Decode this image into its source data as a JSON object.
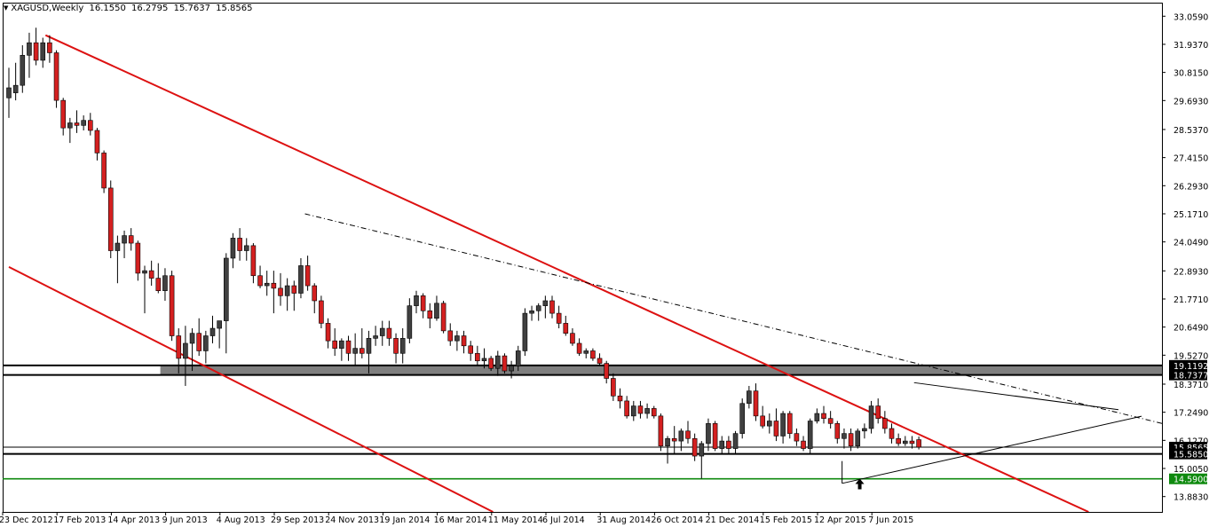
{
  "header": {
    "collapse_glyph": "▼",
    "symbol": "XAGUSD,Weekly",
    "open": "16.1550",
    "high": "16.2795",
    "low": "15.7637",
    "close": "15.8565"
  },
  "colors": {
    "bull": "#404040",
    "bear": "#d42020",
    "wick": "#000000",
    "channel": "#dd1111",
    "support_green": "#0f8a0f",
    "zone": "#7f7f7f",
    "label_bg": "#000000",
    "green_label_bg": "#0f8a0f",
    "tick_text": "#000000"
  },
  "chart_data": {
    "type": "candlestick",
    "symbol": "XAGUSD",
    "timeframe": "Weekly",
    "ylim": [
      13.27,
      33.6
    ],
    "y_ticks": [
      "33.0590",
      "31.9370",
      "30.8150",
      "29.6930",
      "28.5370",
      "27.4150",
      "26.2930",
      "25.1710",
      "24.0490",
      "22.8930",
      "21.7710",
      "20.6490",
      "19.5270",
      "18.3710",
      "17.2490",
      "16.1270",
      "15.0050",
      "13.8830"
    ],
    "x_ticks": [
      {
        "label": "23 Dec 2012",
        "bar": 0
      },
      {
        "label": "17 Feb 2013",
        "bar": 8
      },
      {
        "label": "14 Apr 2013",
        "bar": 16
      },
      {
        "label": "9 Jun 2013",
        "bar": 24
      },
      {
        "label": "4 Aug 2013",
        "bar": 32
      },
      {
        "label": "29 Sep 2013",
        "bar": 40
      },
      {
        "label": "24 Nov 2013",
        "bar": 48
      },
      {
        "label": "19 Jan 2014",
        "bar": 56
      },
      {
        "label": "16 Mar 2014",
        "bar": 64
      },
      {
        "label": "11 May 2014",
        "bar": 72
      },
      {
        "label": "6 Jul 2014",
        "bar": 80
      },
      {
        "label": "31 Aug 2014",
        "bar": 88
      },
      {
        "label": "26 Oct 2014",
        "bar": 96
      },
      {
        "label": "21 Dec 2014",
        "bar": 104
      },
      {
        "label": "15 Feb 2015",
        "bar": 112
      },
      {
        "label": "12 Apr 2015",
        "bar": 120
      },
      {
        "label": "7 Jun 2015",
        "bar": 128
      }
    ],
    "candles": [
      {
        "o": 29.8,
        "h": 31.0,
        "l": 29.0,
        "c": 30.2
      },
      {
        "o": 30.0,
        "h": 31.2,
        "l": 29.7,
        "c": 30.3
      },
      {
        "o": 30.3,
        "h": 31.9,
        "l": 30.0,
        "c": 31.5
      },
      {
        "o": 31.5,
        "h": 32.4,
        "l": 30.6,
        "c": 32.0
      },
      {
        "o": 32.0,
        "h": 32.6,
        "l": 31.1,
        "c": 31.3
      },
      {
        "o": 31.3,
        "h": 32.2,
        "l": 31.0,
        "c": 32.0
      },
      {
        "o": 32.0,
        "h": 32.3,
        "l": 31.2,
        "c": 31.6
      },
      {
        "o": 31.6,
        "h": 31.7,
        "l": 29.4,
        "c": 29.7
      },
      {
        "o": 29.7,
        "h": 29.8,
        "l": 28.3,
        "c": 28.6
      },
      {
        "o": 28.6,
        "h": 29.0,
        "l": 28.0,
        "c": 28.8
      },
      {
        "o": 28.8,
        "h": 29.3,
        "l": 28.4,
        "c": 28.7
      },
      {
        "o": 28.7,
        "h": 29.1,
        "l": 28.5,
        "c": 28.9
      },
      {
        "o": 28.9,
        "h": 29.2,
        "l": 28.3,
        "c": 28.5
      },
      {
        "o": 28.5,
        "h": 28.6,
        "l": 27.3,
        "c": 27.6
      },
      {
        "o": 27.6,
        "h": 27.7,
        "l": 26.0,
        "c": 26.2
      },
      {
        "o": 26.2,
        "h": 26.5,
        "l": 23.4,
        "c": 23.7
      },
      {
        "o": 23.7,
        "h": 24.3,
        "l": 22.4,
        "c": 24.0
      },
      {
        "o": 24.0,
        "h": 24.5,
        "l": 23.4,
        "c": 24.3
      },
      {
        "o": 24.3,
        "h": 24.6,
        "l": 23.7,
        "c": 24.0
      },
      {
        "o": 24.0,
        "h": 24.1,
        "l": 22.5,
        "c": 22.8
      },
      {
        "o": 22.8,
        "h": 23.1,
        "l": 21.2,
        "c": 22.9
      },
      {
        "o": 22.9,
        "h": 23.3,
        "l": 22.3,
        "c": 22.6
      },
      {
        "o": 22.6,
        "h": 23.2,
        "l": 22.0,
        "c": 22.1
      },
      {
        "o": 22.1,
        "h": 23.0,
        "l": 21.7,
        "c": 22.7
      },
      {
        "o": 22.7,
        "h": 22.9,
        "l": 20.1,
        "c": 20.3
      },
      {
        "o": 20.3,
        "h": 20.6,
        "l": 18.8,
        "c": 19.4
      },
      {
        "o": 19.4,
        "h": 20.7,
        "l": 18.3,
        "c": 20.0
      },
      {
        "o": 20.0,
        "h": 20.6,
        "l": 18.9,
        "c": 20.4
      },
      {
        "o": 20.4,
        "h": 21.0,
        "l": 19.5,
        "c": 19.7
      },
      {
        "o": 19.7,
        "h": 20.5,
        "l": 19.2,
        "c": 20.3
      },
      {
        "o": 20.3,
        "h": 21.1,
        "l": 20.0,
        "c": 20.6
      },
      {
        "o": 20.6,
        "h": 20.8,
        "l": 19.8,
        "c": 20.9
      },
      {
        "o": 20.9,
        "h": 23.6,
        "l": 19.6,
        "c": 23.4
      },
      {
        "o": 23.4,
        "h": 24.4,
        "l": 23.0,
        "c": 24.2
      },
      {
        "o": 24.2,
        "h": 24.6,
        "l": 23.3,
        "c": 23.7
      },
      {
        "o": 23.7,
        "h": 24.2,
        "l": 23.3,
        "c": 23.9
      },
      {
        "o": 23.9,
        "h": 24.0,
        "l": 22.4,
        "c": 22.7
      },
      {
        "o": 22.7,
        "h": 23.1,
        "l": 22.2,
        "c": 22.3
      },
      {
        "o": 22.3,
        "h": 22.9,
        "l": 21.9,
        "c": 22.4
      },
      {
        "o": 22.4,
        "h": 22.9,
        "l": 21.2,
        "c": 22.2
      },
      {
        "o": 22.2,
        "h": 22.8,
        "l": 21.5,
        "c": 21.9
      },
      {
        "o": 21.9,
        "h": 22.6,
        "l": 21.3,
        "c": 22.3
      },
      {
        "o": 22.3,
        "h": 22.5,
        "l": 21.3,
        "c": 22.0
      },
      {
        "o": 22.0,
        "h": 23.4,
        "l": 21.8,
        "c": 23.1
      },
      {
        "o": 23.1,
        "h": 23.5,
        "l": 22.1,
        "c": 22.3
      },
      {
        "o": 22.3,
        "h": 22.4,
        "l": 21.2,
        "c": 21.7
      },
      {
        "o": 21.7,
        "h": 21.9,
        "l": 20.6,
        "c": 20.8
      },
      {
        "o": 20.8,
        "h": 21.0,
        "l": 19.8,
        "c": 20.1
      },
      {
        "o": 20.1,
        "h": 20.6,
        "l": 19.5,
        "c": 19.8
      },
      {
        "o": 19.8,
        "h": 20.2,
        "l": 19.3,
        "c": 20.1
      },
      {
        "o": 20.1,
        "h": 20.3,
        "l": 19.3,
        "c": 19.6
      },
      {
        "o": 19.6,
        "h": 20.4,
        "l": 19.1,
        "c": 19.8
      },
      {
        "o": 19.8,
        "h": 20.6,
        "l": 19.4,
        "c": 19.6
      },
      {
        "o": 19.6,
        "h": 20.5,
        "l": 18.8,
        "c": 20.2
      },
      {
        "o": 20.2,
        "h": 20.7,
        "l": 19.9,
        "c": 20.3
      },
      {
        "o": 20.3,
        "h": 20.9,
        "l": 19.9,
        "c": 20.6
      },
      {
        "o": 20.6,
        "h": 20.9,
        "l": 19.9,
        "c": 20.2
      },
      {
        "o": 20.2,
        "h": 20.4,
        "l": 19.2,
        "c": 19.6
      },
      {
        "o": 19.6,
        "h": 20.6,
        "l": 19.2,
        "c": 20.2
      },
      {
        "o": 20.2,
        "h": 21.8,
        "l": 20.0,
        "c": 21.5
      },
      {
        "o": 21.5,
        "h": 22.1,
        "l": 21.2,
        "c": 21.9
      },
      {
        "o": 21.9,
        "h": 22.0,
        "l": 21.0,
        "c": 21.3
      },
      {
        "o": 21.3,
        "h": 21.6,
        "l": 20.6,
        "c": 21.0
      },
      {
        "o": 21.0,
        "h": 21.9,
        "l": 20.9,
        "c": 21.6
      },
      {
        "o": 21.6,
        "h": 21.7,
        "l": 20.4,
        "c": 20.5
      },
      {
        "o": 20.5,
        "h": 20.8,
        "l": 19.9,
        "c": 20.1
      },
      {
        "o": 20.1,
        "h": 20.5,
        "l": 19.7,
        "c": 20.3
      },
      {
        "o": 20.3,
        "h": 20.5,
        "l": 19.6,
        "c": 19.9
      },
      {
        "o": 19.9,
        "h": 20.1,
        "l": 19.3,
        "c": 19.6
      },
      {
        "o": 19.6,
        "h": 19.9,
        "l": 19.1,
        "c": 19.3
      },
      {
        "o": 19.3,
        "h": 19.8,
        "l": 19.0,
        "c": 19.4
      },
      {
        "o": 19.4,
        "h": 19.5,
        "l": 18.9,
        "c": 19.0
      },
      {
        "o": 19.0,
        "h": 19.7,
        "l": 18.7,
        "c": 19.5
      },
      {
        "o": 19.5,
        "h": 19.6,
        "l": 18.8,
        "c": 18.9
      },
      {
        "o": 18.9,
        "h": 19.3,
        "l": 18.6,
        "c": 19.1
      },
      {
        "o": 19.1,
        "h": 19.9,
        "l": 18.9,
        "c": 19.7
      },
      {
        "o": 19.7,
        "h": 21.4,
        "l": 19.5,
        "c": 21.2
      },
      {
        "o": 21.2,
        "h": 21.5,
        "l": 20.9,
        "c": 21.3
      },
      {
        "o": 21.3,
        "h": 21.6,
        "l": 20.9,
        "c": 21.5
      },
      {
        "o": 21.5,
        "h": 21.9,
        "l": 21.0,
        "c": 21.7
      },
      {
        "o": 21.7,
        "h": 21.9,
        "l": 21.0,
        "c": 21.2
      },
      {
        "o": 21.2,
        "h": 21.5,
        "l": 20.6,
        "c": 20.8
      },
      {
        "o": 20.8,
        "h": 21.1,
        "l": 20.3,
        "c": 20.4
      },
      {
        "o": 20.4,
        "h": 20.6,
        "l": 19.9,
        "c": 20.0
      },
      {
        "o": 20.0,
        "h": 20.2,
        "l": 19.5,
        "c": 19.6
      },
      {
        "o": 19.6,
        "h": 19.8,
        "l": 19.4,
        "c": 19.7
      },
      {
        "o": 19.7,
        "h": 19.8,
        "l": 19.3,
        "c": 19.4
      },
      {
        "o": 19.4,
        "h": 19.6,
        "l": 19.1,
        "c": 19.2
      },
      {
        "o": 19.2,
        "h": 19.3,
        "l": 18.4,
        "c": 18.6
      },
      {
        "o": 18.6,
        "h": 18.8,
        "l": 17.7,
        "c": 17.9
      },
      {
        "o": 17.9,
        "h": 18.2,
        "l": 17.4,
        "c": 17.7
      },
      {
        "o": 17.7,
        "h": 17.9,
        "l": 17.0,
        "c": 17.1
      },
      {
        "o": 17.1,
        "h": 17.7,
        "l": 16.9,
        "c": 17.5
      },
      {
        "o": 17.5,
        "h": 17.7,
        "l": 17.0,
        "c": 17.2
      },
      {
        "o": 17.2,
        "h": 17.6,
        "l": 17.0,
        "c": 17.4
      },
      {
        "o": 17.4,
        "h": 17.5,
        "l": 17.0,
        "c": 17.1
      },
      {
        "o": 17.1,
        "h": 17.2,
        "l": 15.7,
        "c": 15.9
      },
      {
        "o": 15.9,
        "h": 16.3,
        "l": 15.2,
        "c": 16.2
      },
      {
        "o": 16.2,
        "h": 16.7,
        "l": 15.6,
        "c": 16.1
      },
      {
        "o": 16.1,
        "h": 16.6,
        "l": 15.7,
        "c": 16.5
      },
      {
        "o": 16.5,
        "h": 16.9,
        "l": 16.0,
        "c": 16.2
      },
      {
        "o": 16.2,
        "h": 16.4,
        "l": 15.3,
        "c": 15.5
      },
      {
        "o": 15.5,
        "h": 16.1,
        "l": 14.6,
        "c": 16.0
      },
      {
        "o": 16.0,
        "h": 17.0,
        "l": 15.7,
        "c": 16.8
      },
      {
        "o": 16.8,
        "h": 16.9,
        "l": 15.7,
        "c": 15.8
      },
      {
        "o": 15.8,
        "h": 16.3,
        "l": 15.6,
        "c": 16.1
      },
      {
        "o": 16.1,
        "h": 16.3,
        "l": 15.6,
        "c": 15.8
      },
      {
        "o": 15.8,
        "h": 16.5,
        "l": 15.6,
        "c": 16.4
      },
      {
        "o": 16.4,
        "h": 17.8,
        "l": 16.2,
        "c": 17.6
      },
      {
        "o": 17.6,
        "h": 18.3,
        "l": 17.4,
        "c": 18.1
      },
      {
        "o": 18.1,
        "h": 18.4,
        "l": 16.9,
        "c": 17.1
      },
      {
        "o": 17.1,
        "h": 17.5,
        "l": 16.6,
        "c": 16.7
      },
      {
        "o": 16.7,
        "h": 17.2,
        "l": 16.4,
        "c": 16.9
      },
      {
        "o": 16.9,
        "h": 17.4,
        "l": 16.1,
        "c": 16.3
      },
      {
        "o": 16.3,
        "h": 17.3,
        "l": 16.0,
        "c": 17.2
      },
      {
        "o": 17.2,
        "h": 17.3,
        "l": 16.2,
        "c": 16.4
      },
      {
        "o": 16.4,
        "h": 16.6,
        "l": 15.9,
        "c": 16.1
      },
      {
        "o": 16.1,
        "h": 16.3,
        "l": 15.7,
        "c": 15.8
      },
      {
        "o": 15.8,
        "h": 17.0,
        "l": 15.6,
        "c": 16.9
      },
      {
        "o": 16.9,
        "h": 17.4,
        "l": 16.8,
        "c": 17.2
      },
      {
        "o": 17.2,
        "h": 17.5,
        "l": 16.8,
        "c": 17.0
      },
      {
        "o": 17.0,
        "h": 17.3,
        "l": 16.6,
        "c": 16.8
      },
      {
        "o": 16.8,
        "h": 16.9,
        "l": 16.0,
        "c": 16.2
      },
      {
        "o": 16.2,
        "h": 16.6,
        "l": 15.8,
        "c": 16.4
      },
      {
        "o": 16.4,
        "h": 16.6,
        "l": 15.7,
        "c": 15.9
      },
      {
        "o": 15.9,
        "h": 16.6,
        "l": 15.8,
        "c": 16.5
      },
      {
        "o": 16.5,
        "h": 16.8,
        "l": 16.2,
        "c": 16.6
      },
      {
        "o": 16.6,
        "h": 17.7,
        "l": 16.4,
        "c": 17.5
      },
      {
        "o": 17.5,
        "h": 17.8,
        "l": 16.8,
        "c": 17.0
      },
      {
        "o": 17.0,
        "h": 17.3,
        "l": 16.4,
        "c": 16.6
      },
      {
        "o": 16.6,
        "h": 16.8,
        "l": 16.0,
        "c": 16.2
      },
      {
        "o": 16.2,
        "h": 16.4,
        "l": 15.9,
        "c": 16.0
      },
      {
        "o": 16.0,
        "h": 16.3,
        "l": 15.9,
        "c": 16.1
      },
      {
        "o": 16.1,
        "h": 16.3,
        "l": 15.8,
        "c": 16.0
      },
      {
        "o": 16.155,
        "h": 16.2795,
        "l": 15.7637,
        "c": 15.8565
      }
    ],
    "price_labels": [
      {
        "text": "19.1192",
        "value": 19.1192,
        "kind": "black"
      },
      {
        "text": "18.7377",
        "value": 18.7377,
        "kind": "black"
      },
      {
        "text": "15.8565",
        "value": 15.8565,
        "kind": "black"
      },
      {
        "text": "15.5850",
        "value": 15.585,
        "kind": "black"
      },
      {
        "text": "14.5900",
        "value": 14.59,
        "kind": "green"
      }
    ],
    "horizontal_lines": [
      {
        "value": 19.1192,
        "color": "black",
        "style": "thick"
      },
      {
        "value": 18.7377,
        "color": "black",
        "style": "thick"
      },
      {
        "value": 15.8565,
        "color": "black",
        "style": "thin"
      },
      {
        "value": 15.585,
        "color": "black",
        "style": "thick"
      },
      {
        "value": 14.59,
        "color": "green",
        "style": "medium"
      }
    ],
    "zone": {
      "from_bar": 22.3,
      "to_bar": 176.3,
      "top": 19.1192,
      "bottom": 18.7377
    },
    "channel_lines": [
      {
        "bar1": 5.4,
        "p1": 32.3,
        "bar2": 159,
        "p2": 13.27
      },
      {
        "bar1": 0,
        "p1": 23.05,
        "bar2": 71.3,
        "p2": 13.27
      }
    ],
    "trend_lines": [
      {
        "bar1": 43.6,
        "p1": 25.17,
        "bar2": 197.3,
        "p2": 14.98,
        "style": "dashdot"
      },
      {
        "bar1": 133.3,
        "p1": 18.43,
        "bar2": 163.4,
        "p2": 17.35,
        "style": "solid"
      },
      {
        "bar1": 122.7,
        "p1": 14.41,
        "bar2": 166.8,
        "p2": 17.09,
        "style": "solid"
      },
      {
        "bar1": 122.7,
        "p1": 14.41,
        "bar2": 122.7,
        "p2": 15.3,
        "style": "solid"
      }
    ],
    "arrow": {
      "bar": 125.3,
      "value": 14.35,
      "direction": "up"
    }
  }
}
